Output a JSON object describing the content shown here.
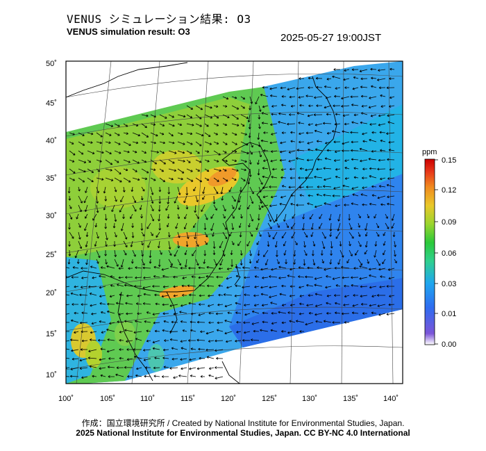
{
  "header": {
    "title_jp": "VENUS シミュレーション結果: O3",
    "title_en": "VENUS simulation result: O3",
    "timestamp": "2025-05-27 19:00JST"
  },
  "map": {
    "lat_labels": [
      "10˚",
      "15˚",
      "20˚",
      "25˚",
      "30˚",
      "35˚",
      "40˚",
      "45˚",
      "50˚"
    ],
    "lon_labels": [
      "100˚",
      "105˚",
      "110˚",
      "115˚",
      "120˚",
      "125˚",
      "130˚",
      "135˚",
      "140˚"
    ],
    "colorbar": {
      "unit": "ppm",
      "ticks": [
        "0.15",
        "0.12",
        "0.09",
        "0.06",
        "0.03",
        "0.01",
        "0.00"
      ],
      "colors": [
        "#ffffff",
        "#7b55d8",
        "#2f6cf0",
        "#1fa6ef",
        "#2fd08f",
        "#2bc93a",
        "#9ad52e",
        "#e9c82a",
        "#f08a1f",
        "#e83a1a",
        "#cc0000"
      ]
    }
  },
  "footer": {
    "credit_jp_en": "作成：国立環境研究所 / Created by National Institute for Environmental Studies, Japan.",
    "copyright": "2025 National Institute for Environmental Studies, Japan. CC BY-NC 4.0 International"
  }
}
